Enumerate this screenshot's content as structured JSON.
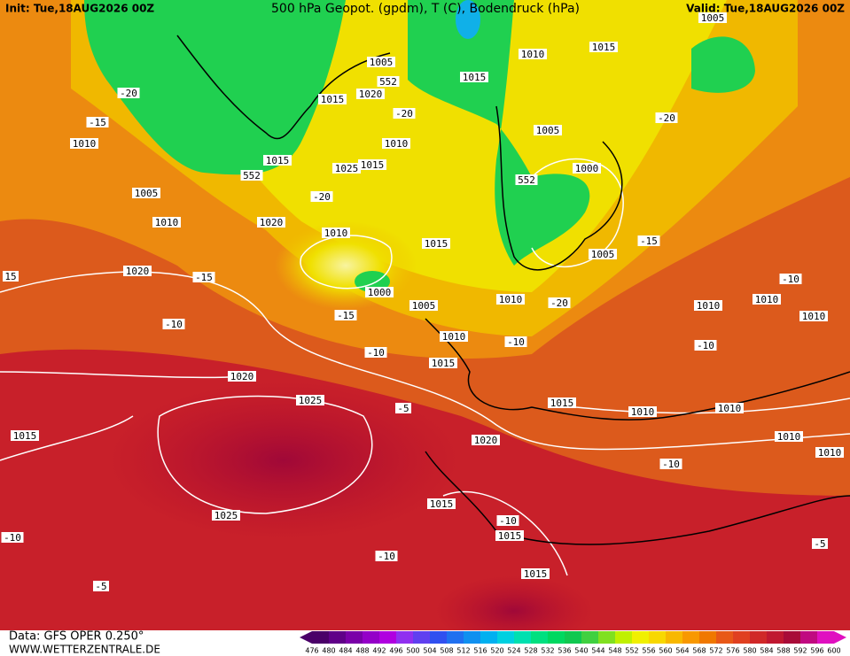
{
  "header": {
    "init": "Init: Tue,18AUG2026 00Z",
    "title": "500 hPa Geopot. (gpdm), T (C), Bodendruck (hPa)",
    "valid": "Valid: Tue,18AUG2026 00Z"
  },
  "footer": {
    "data": "Data: GFS OPER 0.250°",
    "source": "WWW.WETTERZENTRALE.DE"
  },
  "legend": {
    "labels": [
      "476",
      "480",
      "484",
      "488",
      "492",
      "496",
      "500",
      "504",
      "508",
      "512",
      "516",
      "520",
      "524",
      "528",
      "532",
      "536",
      "540",
      "544",
      "548",
      "552",
      "556",
      "560",
      "564",
      "568",
      "572",
      "576",
      "580",
      "584",
      "588",
      "592",
      "596",
      "600"
    ],
    "colors": [
      "#4a0068",
      "#600088",
      "#7a00a8",
      "#9400c8",
      "#b000e0",
      "#9030f0",
      "#6040f0",
      "#3050f0",
      "#2070f0",
      "#1090f0",
      "#00b0f0",
      "#00d0e0",
      "#00e0b0",
      "#00e080",
      "#00d860",
      "#10c850",
      "#40d040",
      "#80e020",
      "#c0f000",
      "#f0f000",
      "#f8d800",
      "#f8b800",
      "#f89800",
      "#f07800",
      "#e85818",
      "#e04020",
      "#d02828",
      "#c01830",
      "#a80c38",
      "#c00a80",
      "#e010c0"
    ]
  },
  "map_labels": [
    "1005",
    "1015",
    "1010",
    "1005",
    "552",
    "1015",
    "-20",
    "1015",
    "1020",
    "-20",
    "-15",
    "1010",
    "-20",
    "1005",
    "1010",
    "1015",
    "1025",
    "1015",
    "552",
    "1000",
    "552",
    "1005",
    "-20",
    "1010",
    "1020",
    "1010",
    "1015",
    "-15",
    "1005",
    "1020",
    "-15",
    "1000",
    "1010",
    "-20",
    "1005",
    "-10",
    "1010",
    "1010",
    "1010",
    "-15",
    "-10",
    "1010",
    "-10",
    "-10",
    "-10",
    "1015",
    "1020",
    "1025",
    "-5",
    "1015",
    "1010",
    "1010",
    "1015",
    "1020",
    "1010",
    "1010",
    "-10",
    "1015",
    "1025",
    "-10",
    "1015",
    "-10",
    "-10",
    "-5",
    "1015",
    "-5",
    "15"
  ]
}
